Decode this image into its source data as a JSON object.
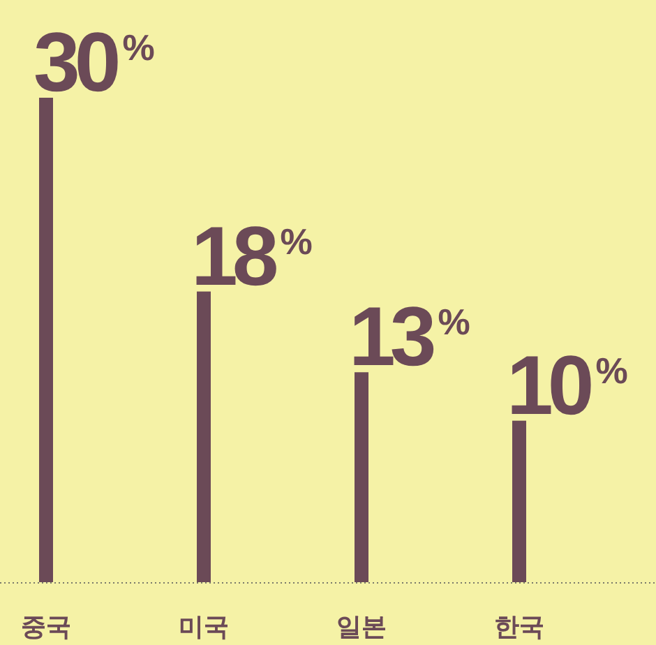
{
  "chart_data": {
    "type": "bar",
    "categories": [
      "중국",
      "미국",
      "일본",
      "한국"
    ],
    "values": [
      30,
      18,
      13,
      10
    ],
    "value_labels": [
      "30$^{%}$",
      "18$^{%}$",
      "13$^{%}$",
      "10$^{%}$"
    ],
    "color": "#6b4a57"
  }
}
